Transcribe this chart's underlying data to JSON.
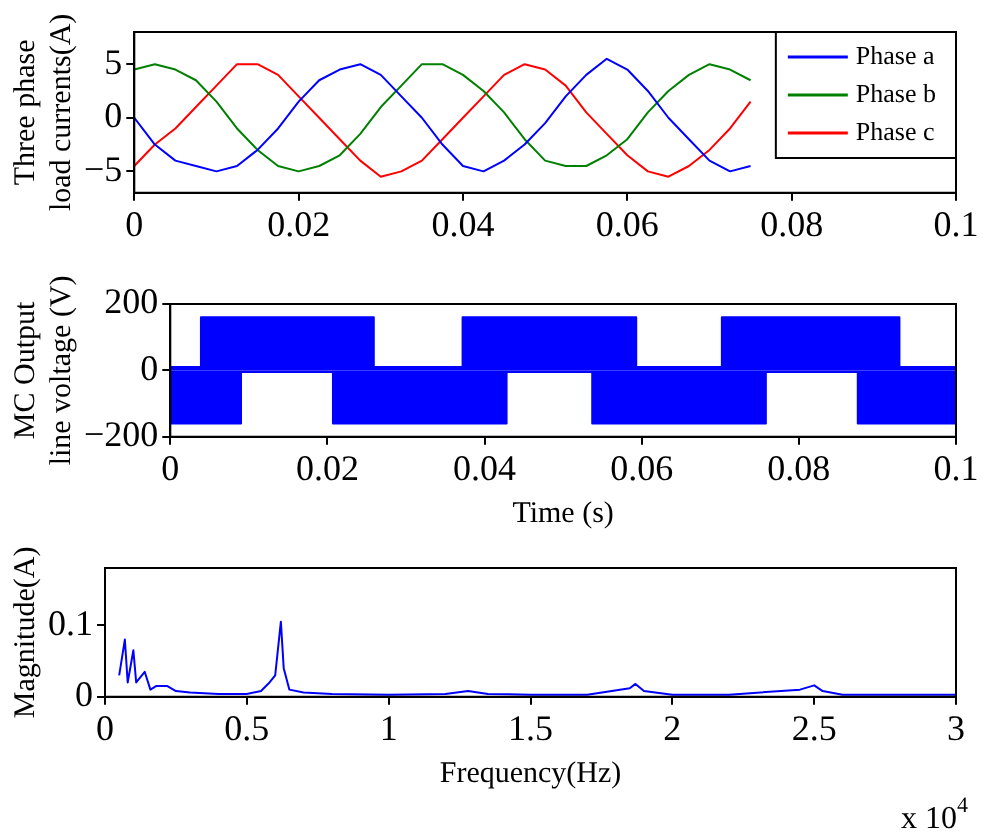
{
  "chart_data": [
    {
      "type": "line",
      "ylabel": "Three phase\nload currents(A)",
      "x": [
        0,
        0.0025,
        0.005,
        0.0075,
        0.01,
        0.0125,
        0.015,
        0.0175,
        0.02,
        0.0225,
        0.025,
        0.0275,
        0.03,
        0.0325,
        0.035,
        0.0375,
        0.04,
        0.0425,
        0.045,
        0.0475,
        0.05,
        0.0525,
        0.055,
        0.0575,
        0.06,
        0.0625,
        0.065,
        0.0675,
        0.07,
        0.0725,
        0.075
      ],
      "series": [
        {
          "name": "Phase a",
          "color": "#0000ff",
          "values": [
            0,
            -2.5,
            -4,
            -4.5,
            -5,
            -4.5,
            -3,
            -1,
            1.5,
            3.5,
            4.5,
            5,
            4,
            2,
            0,
            -2.5,
            -4.5,
            -5,
            -4,
            -2.5,
            -0.5,
            2,
            4,
            5.5,
            4.5,
            2.5,
            0,
            -2,
            -4,
            -5,
            -4.5
          ]
        },
        {
          "name": "Phase b",
          "color": "#008000",
          "values": [
            4.5,
            5,
            4.5,
            3.5,
            1.5,
            -1,
            -3,
            -4.5,
            -5,
            -4.5,
            -3.5,
            -1.5,
            1,
            3,
            5,
            5,
            4,
            2.5,
            0.5,
            -2,
            -4,
            -4.5,
            -4.5,
            -3.5,
            -2,
            0.5,
            2.5,
            4,
            5,
            4.5,
            3.5
          ]
        },
        {
          "name": "Phase c",
          "color": "#ff0000",
          "values": [
            -4.5,
            -2.5,
            -1,
            1,
            3,
            5,
            5,
            4,
            2,
            0,
            -2,
            -4,
            -5.5,
            -5,
            -4,
            -2,
            0,
            2,
            4,
            5,
            4.5,
            3,
            0.5,
            -1.5,
            -3.5,
            -5,
            -5.5,
            -4.5,
            -3,
            -1,
            1.5
          ]
        }
      ],
      "xlim": [
        0,
        0.1
      ],
      "xticks": [
        0,
        0.02,
        0.04,
        0.06,
        0.08,
        0.1
      ],
      "ylim": [
        -7,
        8
      ],
      "yticks": [
        {
          "value": -5,
          "label": "−5"
        },
        0,
        5
      ],
      "legend": "top right",
      "marker": "none",
      "grid": false
    },
    {
      "type": "area",
      "ylabel": "MC Output\nline voltage (V)",
      "xlabel": "Time (s)",
      "series": [
        {
          "color": "#0000ff",
          "x": [
            0,
            0.0039,
            0.0039,
            0.0259,
            0.0259,
            0.0372,
            0.0372,
            0.0593,
            0.0593,
            0.0702,
            0.0702,
            0.0928,
            0.0928,
            0.1
          ],
          "values": [
            10,
            10,
            160,
            160,
            10,
            10,
            160,
            160,
            10,
            10,
            160,
            160,
            10,
            10
          ]
        },
        {
          "color": "#0000ff",
          "x": [
            0,
            0.009,
            0.009,
            0.0207,
            0.0207,
            0.0428,
            0.0428,
            0.0537,
            0.0537,
            0.0758,
            0.0758,
            0.0875,
            0.0875,
            0.1
          ],
          "values": [
            -160,
            -160,
            -5,
            -5,
            -160,
            -160,
            -5,
            -5,
            -160,
            -160,
            -5,
            -5,
            -160,
            -160
          ]
        }
      ],
      "xlim": [
        0,
        0.1
      ],
      "xticks": [
        0,
        0.02,
        0.04,
        0.06,
        0.08,
        0.1
      ],
      "ylim": [
        -200,
        200
      ],
      "yticks": [
        {
          "value": -200,
          "label": "−200"
        },
        0,
        200
      ],
      "marker": "none",
      "grid": false
    },
    {
      "type": "line",
      "ylabel": "Magnitude(A)",
      "xlabel": "Frequency(Hz)",
      "annotations": [
        "x 10$^{4}$"
      ],
      "x": [
        0.05,
        0.07,
        0.08,
        0.1,
        0.11,
        0.14,
        0.16,
        0.18,
        0.22,
        0.25,
        0.3,
        0.4,
        0.5,
        0.55,
        0.58,
        0.6,
        0.62,
        0.63,
        0.65,
        0.7,
        0.8,
        1.0,
        1.2,
        1.28,
        1.35,
        1.5,
        1.7,
        1.85,
        1.87,
        1.9,
        2.0,
        2.2,
        2.45,
        2.5,
        2.53,
        2.6,
        2.8,
        3.0
      ],
      "series": [
        {
          "color": "#0000ff",
          "values": [
            0.03,
            0.08,
            0.02,
            0.065,
            0.02,
            0.035,
            0.01,
            0.015,
            0.015,
            0.008,
            0.006,
            0.004,
            0.004,
            0.008,
            0.02,
            0.03,
            0.105,
            0.04,
            0.01,
            0.006,
            0.004,
            0.003,
            0.004,
            0.008,
            0.004,
            0.003,
            0.003,
            0.012,
            0.018,
            0.008,
            0.003,
            0.003,
            0.01,
            0.016,
            0.008,
            0.003,
            0.003,
            0.003
          ]
        }
      ],
      "xlim": [
        0,
        3
      ],
      "xticks": [
        0,
        0.5,
        1,
        1.5,
        2,
        2.5,
        3
      ],
      "ylim": [
        0,
        0.18
      ],
      "yticks": [
        0,
        0.1
      ],
      "marker": "none",
      "grid": false
    }
  ]
}
